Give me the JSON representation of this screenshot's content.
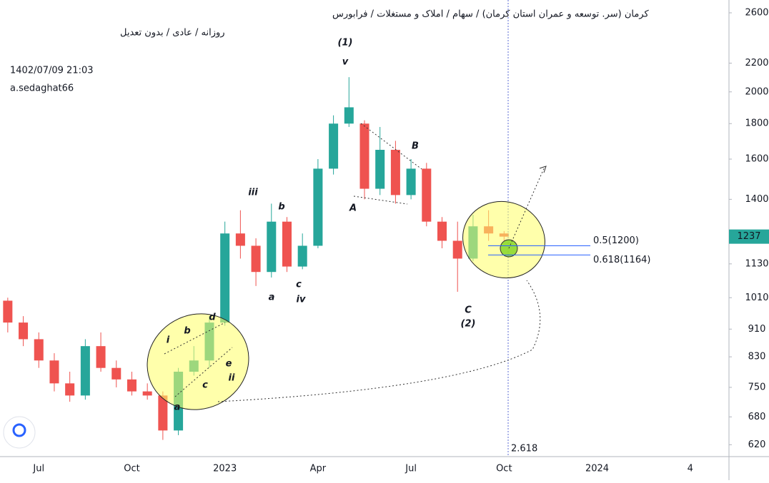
{
  "header": {
    "title": "کرمان (سر. توسعه و عمران استان کرمان) / سهام / املاک و مستغلات / فرابورس",
    "subtitle": "روزانه / عادی / بدون تعدیل",
    "timestamp": "1402/07/09 21:03",
    "author": "a.sedaghat66"
  },
  "chart_data": {
    "type": "candlestick",
    "log_scale": true,
    "up_color": "#26a69a",
    "down_color": "#ef5350",
    "categories": [
      null,
      null,
      "Jul",
      null,
      null,
      null,
      null,
      null,
      "Oct",
      null,
      null,
      null,
      null,
      null,
      "2023",
      null,
      null,
      null,
      null,
      null,
      "Apr",
      null,
      null,
      null,
      null,
      null,
      "Jul",
      null,
      null,
      null,
      null,
      null,
      "Oct",
      null,
      null,
      null,
      null,
      null,
      "2024",
      null,
      null,
      null,
      null,
      null,
      "4",
      null,
      null
    ],
    "open": [
      1000,
      930,
      880,
      820,
      760,
      730,
      860,
      800,
      770,
      740,
      730,
      650,
      790,
      820,
      930,
      1250,
      1200,
      1100,
      1300,
      1120,
      1200,
      1550,
      1800,
      1800,
      1450,
      1650,
      1420,
      1550,
      1300,
      1220,
      1150,
      1280,
      1250,
      null,
      null,
      null,
      null,
      null,
      null,
      null,
      null,
      null,
      null,
      null,
      null,
      null,
      null
    ],
    "high": [
      1010,
      950,
      900,
      840,
      790,
      880,
      900,
      820,
      790,
      760,
      740,
      800,
      860,
      950,
      1300,
      1350,
      1230,
      1380,
      1320,
      1250,
      1600,
      1850,
      2100,
      1820,
      1780,
      1700,
      1600,
      1580,
      1320,
      1300,
      1330,
      1350,
      1260,
      null,
      null,
      null,
      null,
      null,
      null,
      null,
      null,
      null,
      null,
      null,
      null,
      null,
      null
    ],
    "low": [
      900,
      860,
      800,
      740,
      715,
      720,
      790,
      750,
      730,
      720,
      630,
      640,
      780,
      800,
      920,
      1150,
      1050,
      1080,
      1100,
      1110,
      1190,
      1520,
      1780,
      1400,
      1420,
      1380,
      1400,
      1280,
      1190,
      1030,
      1140,
      1220,
      1220,
      null,
      null,
      null,
      null,
      null,
      null,
      null,
      null,
      null,
      null,
      null,
      null,
      null,
      null
    ],
    "close": [
      930,
      880,
      820,
      760,
      730,
      860,
      800,
      770,
      740,
      730,
      650,
      790,
      820,
      930,
      1250,
      1200,
      1100,
      1300,
      1120,
      1200,
      1550,
      1800,
      1900,
      1450,
      1650,
      1420,
      1550,
      1300,
      1220,
      1150,
      1280,
      1250,
      1237,
      null,
      null,
      null,
      null,
      null,
      null,
      null,
      null,
      null,
      null,
      null,
      null,
      null,
      null
    ],
    "ylim": [
      596,
      2713
    ],
    "yticks": [
      620,
      680,
      750,
      830,
      910,
      1010,
      1130,
      1400,
      1600,
      1800,
      2000,
      2200,
      2600
    ],
    "last_price": 1237,
    "fib_levels": [
      {
        "value": 1200,
        "label": "0.5(1200)"
      },
      {
        "value": 1164,
        "label": "0.618(1164)"
      }
    ],
    "extension_label": "2.618",
    "annotations": [
      "(1)",
      "v",
      "iii",
      "b",
      "a",
      "c",
      "iv",
      "A",
      "B",
      "C",
      "(2)",
      "i",
      "b",
      "d",
      "e",
      "c",
      "a",
      "ii"
    ]
  }
}
